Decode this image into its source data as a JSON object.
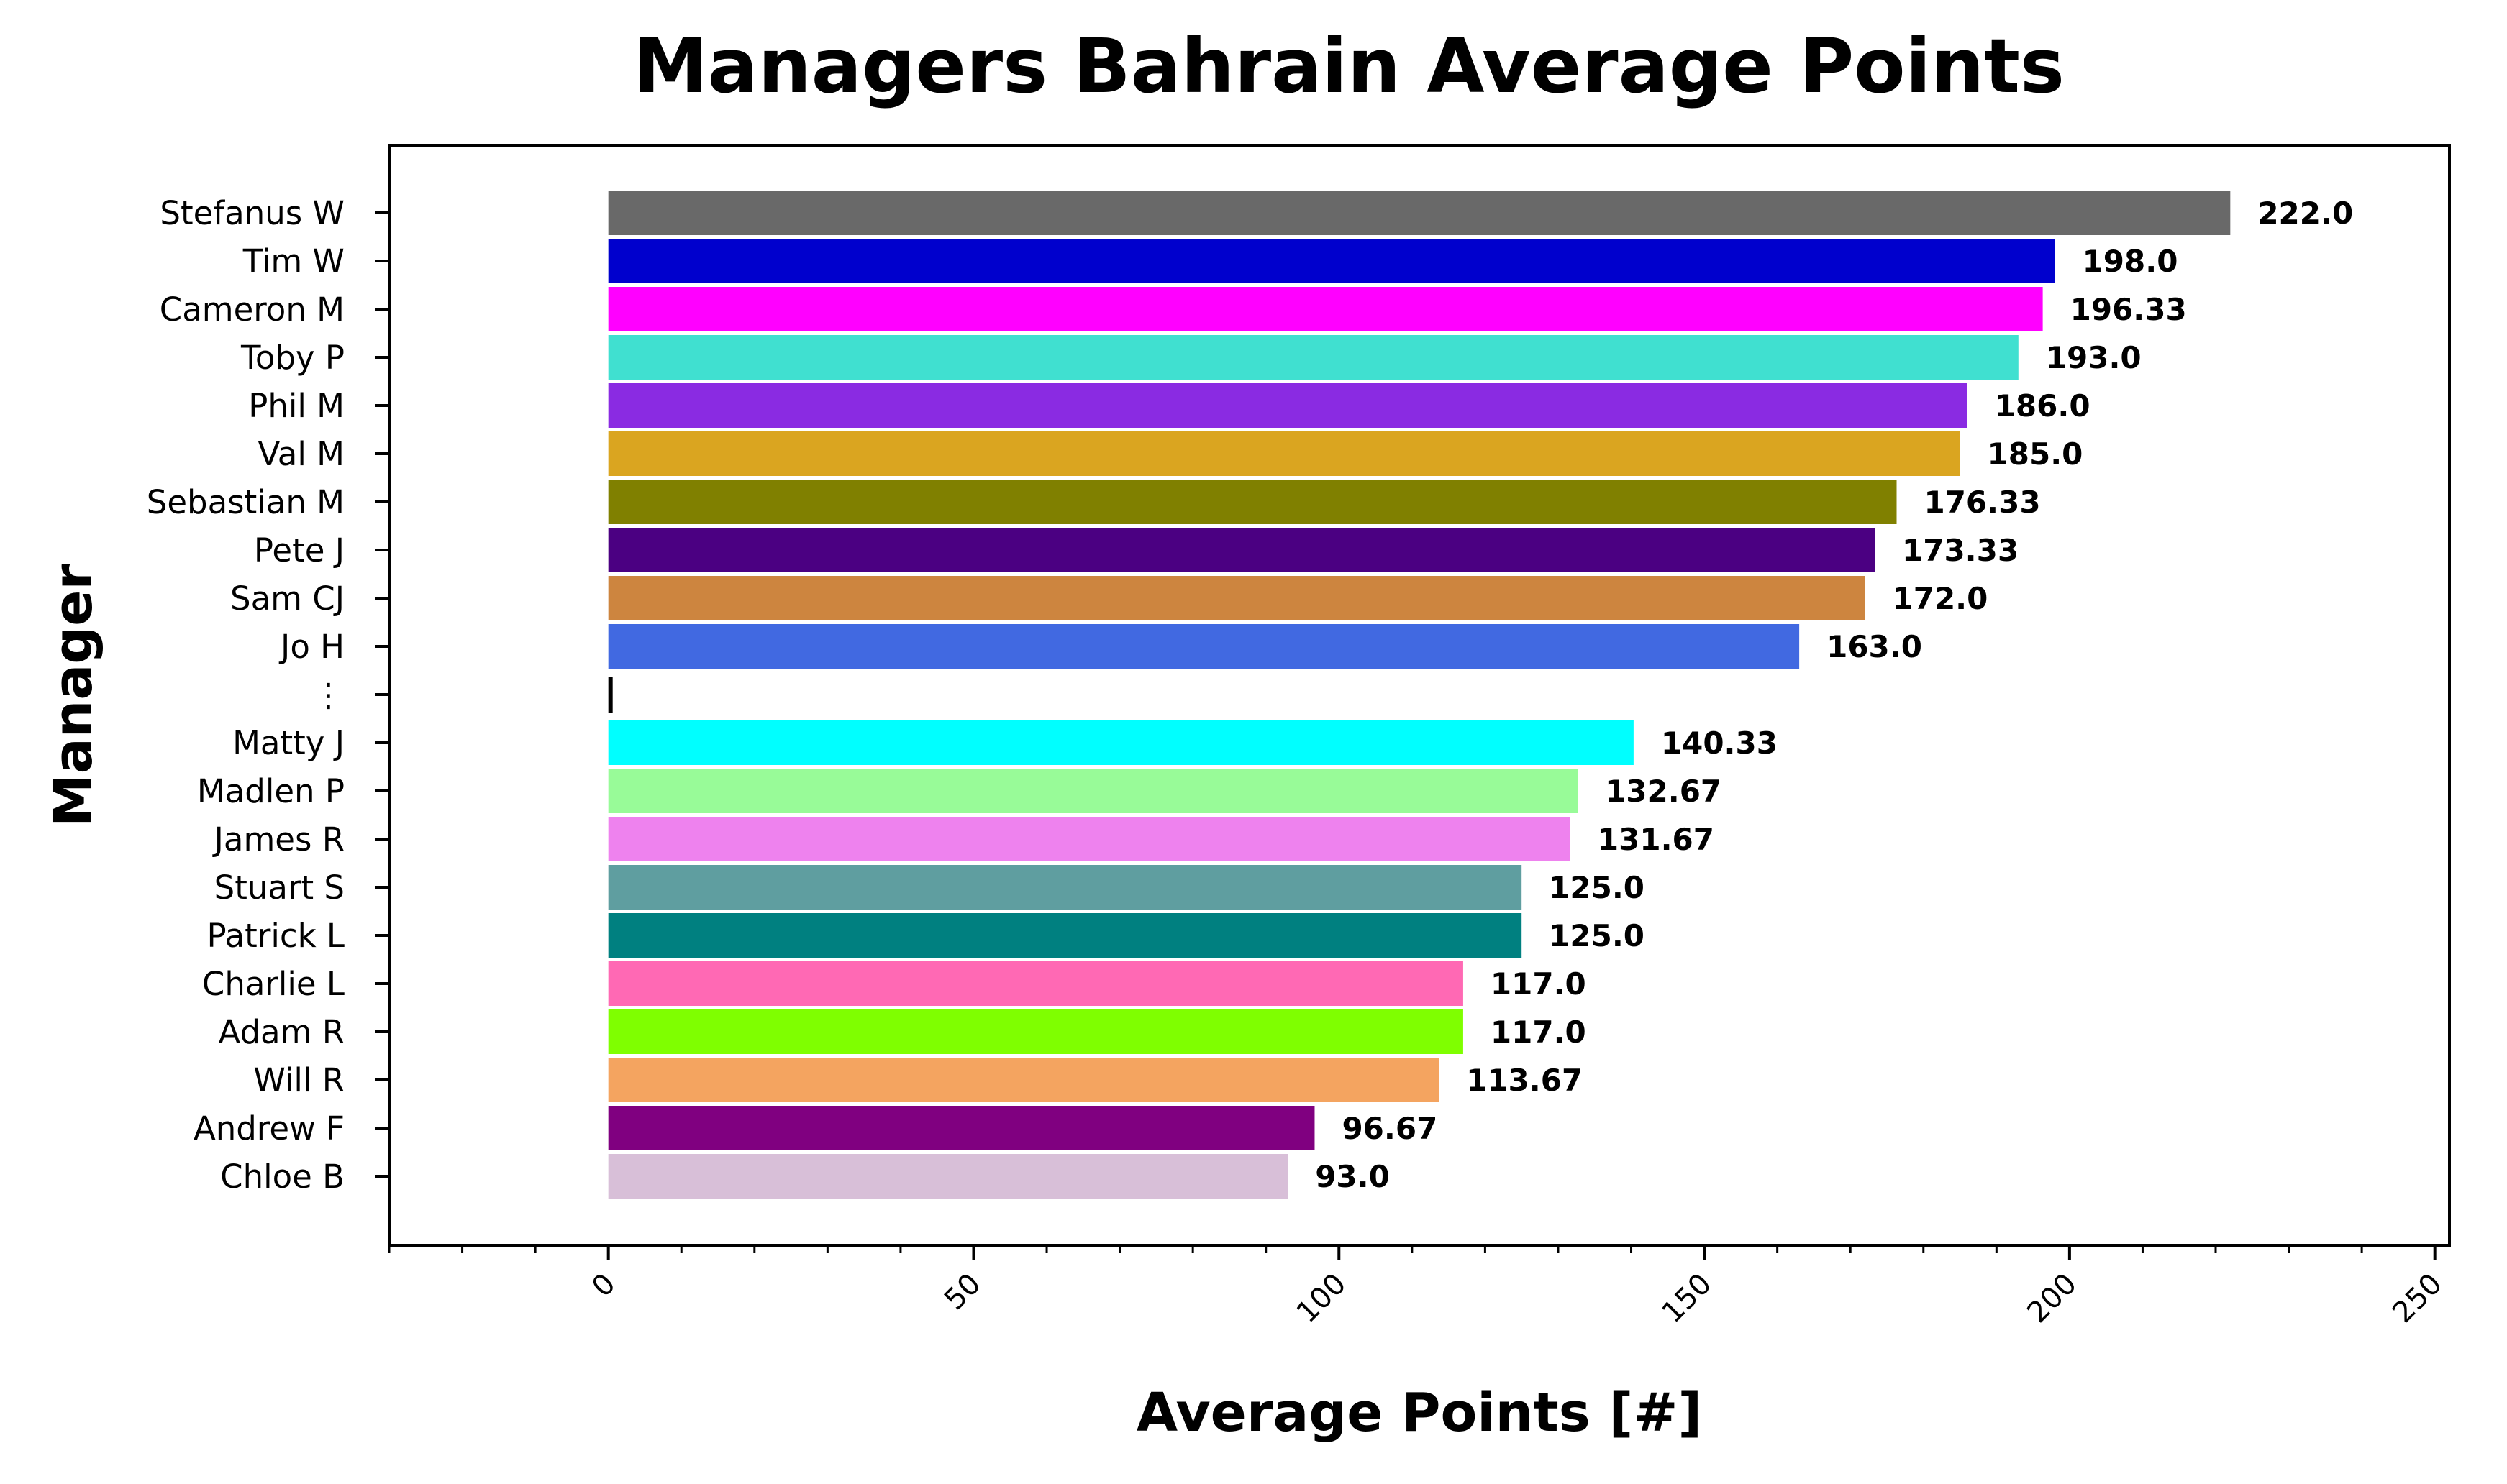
{
  "chart_data": {
    "type": "bar",
    "orientation": "horizontal",
    "title": "Managers Bahrain Average Points",
    "xlabel": "Average Points [#]",
    "ylabel": "Manager",
    "xlim": [
      -30,
      252
    ],
    "xticks": [
      "0",
      "50",
      "100",
      "150",
      "200",
      "250"
    ],
    "xtick_rotation": 45,
    "minor_xticks": true,
    "grid": false,
    "legend": "none",
    "categories": [
      "Stefanus W",
      "Tim W",
      "Cameron M",
      "Toby P",
      "Phil M",
      "Val M",
      "Sebastian M",
      "Pete J",
      "Sam CJ",
      "Jo H",
      "⋮",
      "Matty J",
      "Madlen P",
      "James R",
      "Stuart S",
      "Patrick L",
      "Charlie L",
      "Adam R",
      "Will R",
      "Andrew F",
      "Chloe B"
    ],
    "values": [
      222.0,
      198.0,
      196.33,
      193.0,
      186.0,
      185.0,
      176.33,
      173.33,
      172.0,
      163.0,
      0,
      140.33,
      132.67,
      131.67,
      125.0,
      125.0,
      117.0,
      117.0,
      113.67,
      96.67,
      93.0
    ],
    "value_labels": [
      "222.0",
      "198.0",
      "196.33",
      "193.0",
      "186.0",
      "185.0",
      "176.33",
      "173.33",
      "172.0",
      "163.0",
      "",
      "140.33",
      "132.67",
      "131.67",
      "125.0",
      "125.0",
      "117.0",
      "117.0",
      "113.67",
      "96.67",
      "93.0"
    ],
    "colors": [
      "#696969",
      "#0000cd",
      "#ff00ff",
      "#40e0d0",
      "#8a2be2",
      "#daa520",
      "#808000",
      "#4b0082",
      "#cd853f",
      "#4169e1",
      "#000000",
      "#00ffff",
      "#98fb98",
      "#ee82ee",
      "#5f9ea0",
      "#008080",
      "#ff69b4",
      "#7fff00",
      "#f4a460",
      "#800080",
      "#d8bfd8"
    ]
  }
}
